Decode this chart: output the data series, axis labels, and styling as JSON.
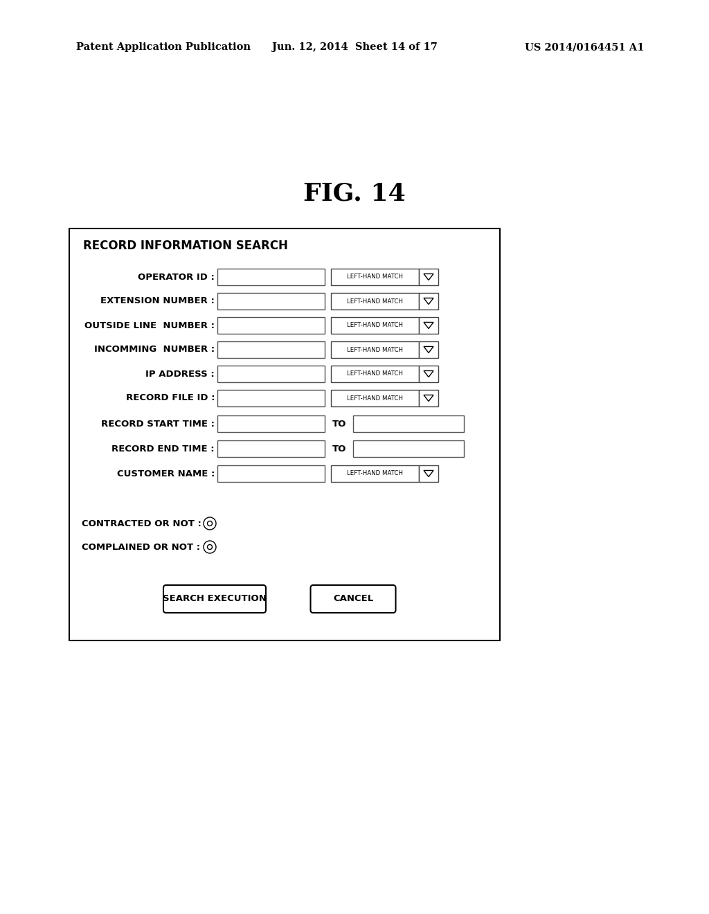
{
  "bg_color": "#ffffff",
  "header_text_left": "Patent Application Publication",
  "header_text_mid": "Jun. 12, 2014  Sheet 14 of 17",
  "header_text_right": "US 2014/0164451 A1",
  "fig_title": "FIG. 14",
  "panel_title": "RECORD INFORMATION SEARCH",
  "fields_with_dropdown": [
    "OPERATOR ID",
    "EXTENSION NUMBER",
    "OUTSIDE LINE  NUMBER",
    "INCOMMING  NUMBER",
    "IP ADDRESS",
    "RECORD FILE ID"
  ],
  "fields_with_to": [
    "RECORD START TIME",
    "RECORD END TIME"
  ],
  "field_customer": "CUSTOMER NAME",
  "radio_fields": [
    "CONTRACTED OR NOT",
    "COMPLAINED OR NOT"
  ],
  "button_left": "SEARCH EXECUTION",
  "button_right": "CANCEL"
}
